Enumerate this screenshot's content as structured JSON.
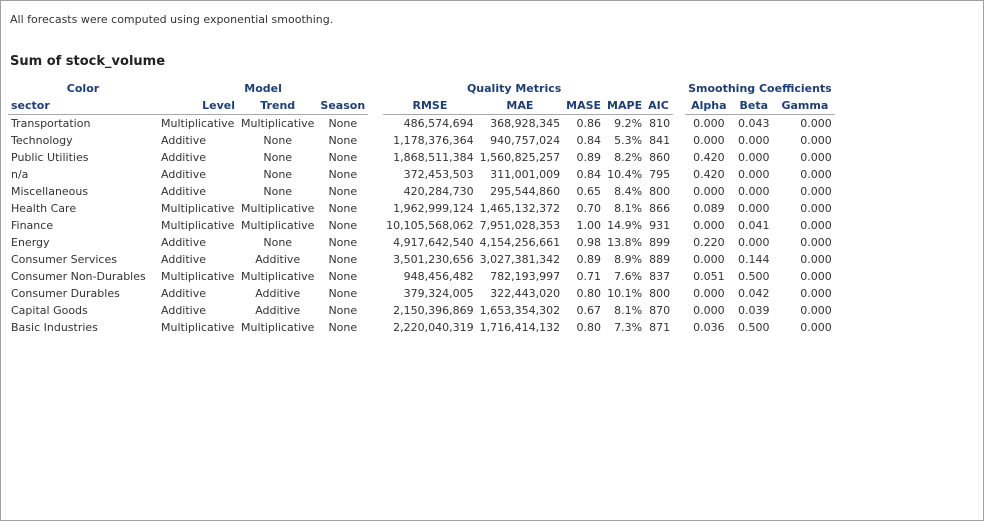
{
  "note": "All forecasts were computed using exponential smoothing.",
  "heading": "Sum of stock_volume",
  "groups": {
    "color": "Color",
    "model": "Model",
    "quality": "Quality Metrics",
    "smoothing": "Smoothing Coefficients"
  },
  "columns": [
    "sector",
    "Level",
    "Trend",
    "Season",
    "RMSE",
    "MAE",
    "MASE",
    "MAPE",
    "AIC",
    "Alpha",
    "Beta",
    "Gamma"
  ],
  "rows": [
    [
      "Transportation",
      "Multiplicative",
      "Multiplicative",
      "None",
      "486,574,694",
      "368,928,345",
      "0.86",
      "9.2%",
      "810",
      "0.000",
      "0.043",
      "0.000"
    ],
    [
      "Technology",
      "Additive",
      "None",
      "None",
      "1,178,376,364",
      "940,757,024",
      "0.84",
      "5.3%",
      "841",
      "0.000",
      "0.000",
      "0.000"
    ],
    [
      "Public Utilities",
      "Additive",
      "None",
      "None",
      "1,868,511,384",
      "1,560,825,257",
      "0.89",
      "8.2%",
      "860",
      "0.420",
      "0.000",
      "0.000"
    ],
    [
      "n/a",
      "Additive",
      "None",
      "None",
      "372,453,503",
      "311,001,009",
      "0.84",
      "10.4%",
      "795",
      "0.420",
      "0.000",
      "0.000"
    ],
    [
      "Miscellaneous",
      "Additive",
      "None",
      "None",
      "420,284,730",
      "295,544,860",
      "0.65",
      "8.4%",
      "800",
      "0.000",
      "0.000",
      "0.000"
    ],
    [
      "Health Care",
      "Multiplicative",
      "Multiplicative",
      "None",
      "1,962,999,124",
      "1,465,132,372",
      "0.70",
      "8.1%",
      "866",
      "0.089",
      "0.000",
      "0.000"
    ],
    [
      "Finance",
      "Multiplicative",
      "Multiplicative",
      "None",
      "10,105,568,062",
      "7,951,028,353",
      "1.00",
      "14.9%",
      "931",
      "0.000",
      "0.041",
      "0.000"
    ],
    [
      "Energy",
      "Additive",
      "None",
      "None",
      "4,917,642,540",
      "4,154,256,661",
      "0.98",
      "13.8%",
      "899",
      "0.220",
      "0.000",
      "0.000"
    ],
    [
      "Consumer Services",
      "Additive",
      "Additive",
      "None",
      "3,501,230,656",
      "3,027,381,342",
      "0.89",
      "8.9%",
      "889",
      "0.000",
      "0.144",
      "0.000"
    ],
    [
      "Consumer Non-Durables",
      "Multiplicative",
      "Multiplicative",
      "None",
      "948,456,482",
      "782,193,997",
      "0.71",
      "7.6%",
      "837",
      "0.051",
      "0.500",
      "0.000"
    ],
    [
      "Consumer Durables",
      "Additive",
      "Additive",
      "None",
      "379,324,005",
      "322,443,020",
      "0.80",
      "10.1%",
      "800",
      "0.000",
      "0.042",
      "0.000"
    ],
    [
      "Capital Goods",
      "Additive",
      "Additive",
      "None",
      "2,150,396,869",
      "1,653,354,302",
      "0.67",
      "8.1%",
      "870",
      "0.000",
      "0.039",
      "0.000"
    ],
    [
      "Basic Industries",
      "Multiplicative",
      "Multiplicative",
      "None",
      "2,220,040,319",
      "1,716,414,132",
      "0.80",
      "7.3%",
      "871",
      "0.036",
      "0.500",
      "0.000"
    ]
  ]
}
